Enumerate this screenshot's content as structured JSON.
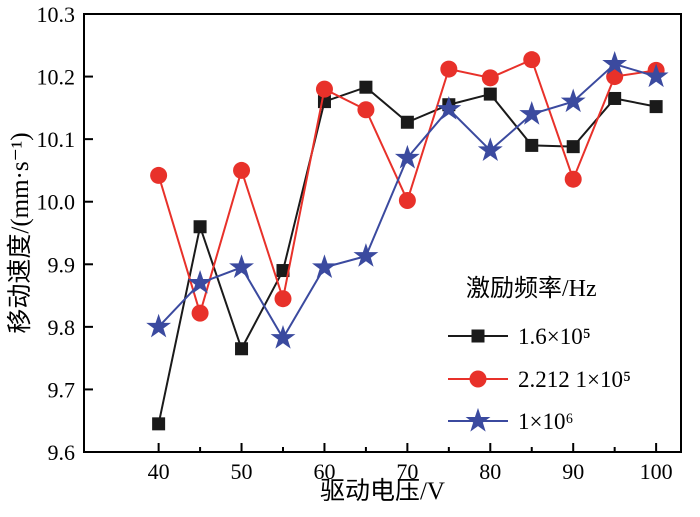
{
  "chart_data": {
    "type": "line",
    "title": "",
    "xlabel": "驱动电压/V",
    "ylabel": "移动速度/(mm·s⁻¹)",
    "grid": false,
    "xlim": [
      31,
      103
    ],
    "ylim": [
      9.6,
      10.3
    ],
    "x_major_ticks": [
      40,
      50,
      60,
      70,
      80,
      90,
      100
    ],
    "x_minor_ticks": [
      45,
      55,
      65,
      75,
      85,
      95
    ],
    "y_major_ticks": [
      9.6,
      9.7,
      9.8,
      9.9,
      10.0,
      10.1,
      10.2,
      10.3
    ],
    "x": [
      40,
      45,
      50,
      55,
      60,
      65,
      70,
      75,
      80,
      85,
      90,
      95,
      100
    ],
    "legend_title": "激励频率/Hz",
    "legend_position": "inside-right-lower",
    "series": [
      {
        "name": "1.6×10⁵",
        "marker": "square",
        "color": "#1a1a1a",
        "values": [
          9.645,
          9.96,
          9.765,
          9.89,
          10.16,
          10.183,
          10.127,
          10.155,
          10.172,
          10.09,
          10.088,
          10.165,
          10.152
        ]
      },
      {
        "name": "2.212 1×10⁵",
        "marker": "circle",
        "color": "#e8312a",
        "values": [
          10.042,
          9.822,
          10.05,
          9.845,
          10.18,
          10.147,
          10.002,
          10.212,
          10.198,
          10.227,
          10.036,
          10.2,
          10.21
        ]
      },
      {
        "name": "1×10⁶",
        "marker": "star",
        "color": "#3b4a9f",
        "values": [
          9.8,
          9.87,
          9.895,
          9.782,
          9.895,
          9.913,
          10.07,
          10.148,
          10.082,
          10.14,
          10.16,
          10.22,
          10.2
        ]
      }
    ]
  }
}
